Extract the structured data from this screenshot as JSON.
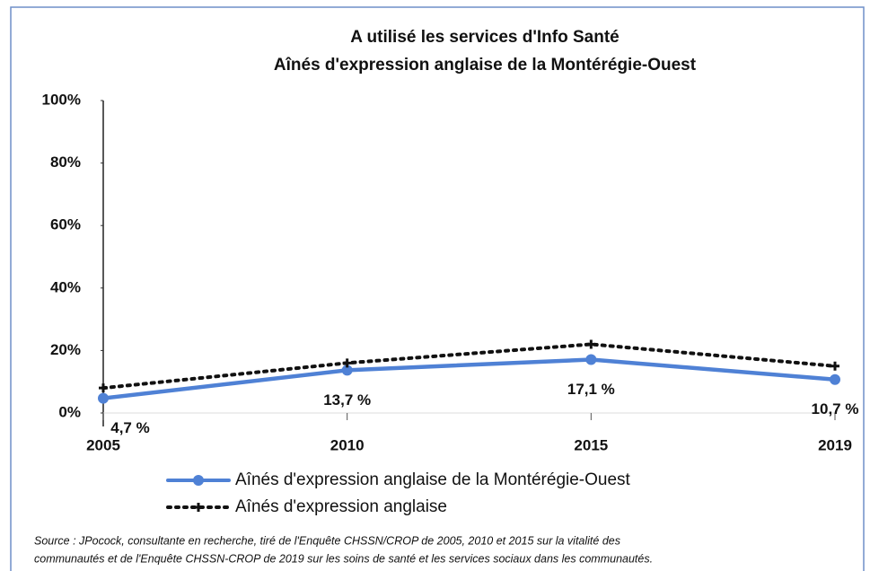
{
  "chart_data": {
    "type": "line",
    "title": [
      "A utilisé les services d'Info Santé",
      "Aînés d'expression anglaise de la Montérégie-Ouest"
    ],
    "categories": [
      "2005",
      "2010",
      "2015",
      "2019"
    ],
    "series": [
      {
        "name": "Aînés d'expression anglaise de la Montérégie-Ouest",
        "color": "#4f81d5",
        "style": "solid",
        "values": [
          4.7,
          13.7,
          17.1,
          10.7
        ],
        "value_labels": [
          "4,7 %",
          "13,7 %",
          "17,1 %",
          "10,7 %"
        ]
      },
      {
        "name": "Aînés d'expression anglaise",
        "color": "#111111",
        "style": "dotted",
        "values": [
          8,
          16,
          22,
          15
        ]
      }
    ],
    "ylim": [
      0,
      100
    ],
    "yticks": [
      {
        "value": 0,
        "label": "0%"
      },
      {
        "value": 20,
        "label": "20%"
      },
      {
        "value": 40,
        "label": "40%"
      },
      {
        "value": 60,
        "label": "60%"
      },
      {
        "value": 80,
        "label": "80%"
      },
      {
        "value": 100,
        "label": "100%"
      }
    ],
    "legend": "bottom",
    "source": [
      "Source : JPocock, consultante en recherche, tiré de l'Enquête CHSSN/CROP de 2005, 2010 et 2015 sur la vitalité des",
      "communautés et de l'Enquête CHSSN-CROP de 2019 sur les soins de santé et les services sociaux dans les communautés."
    ]
  }
}
